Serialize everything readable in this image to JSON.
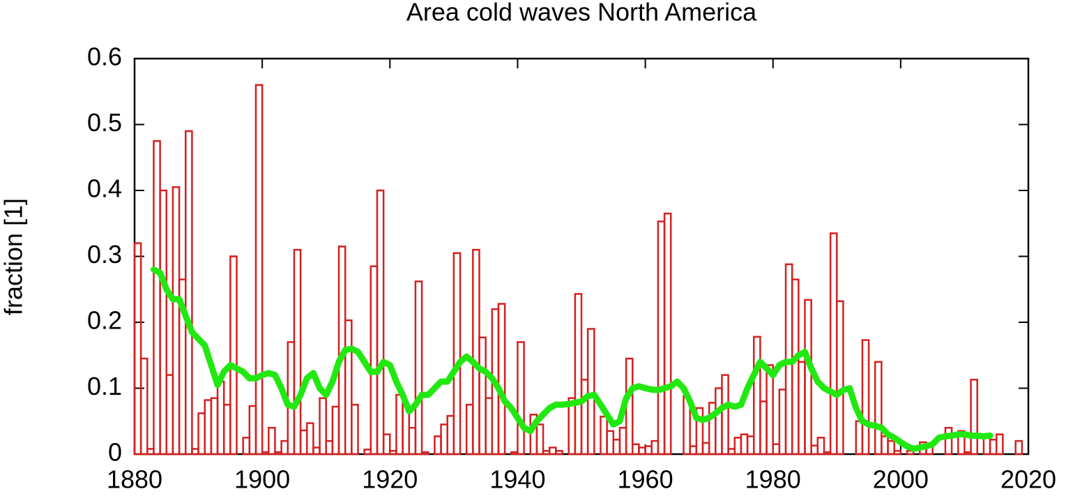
{
  "chart_data": {
    "type": "combo",
    "title": "Area cold waves North America",
    "ylabel": "fraction [1]",
    "xlim": [
      1880,
      2020
    ],
    "xticks": [
      1880,
      1900,
      1920,
      1940,
      1960,
      1980,
      2000,
      2020
    ],
    "ylim": [
      0,
      0.6
    ],
    "yticks": [
      0,
      0.1,
      0.2,
      0.3,
      0.4,
      0.5,
      0.6
    ],
    "series": [
      {
        "type": "bar",
        "color": "#d42020",
        "x": [
          1880,
          1881,
          1882,
          1883,
          1884,
          1885,
          1886,
          1887,
          1888,
          1889,
          1890,
          1891,
          1892,
          1893,
          1894,
          1895,
          1896,
          1897,
          1898,
          1899,
          1900,
          1901,
          1902,
          1903,
          1904,
          1905,
          1906,
          1907,
          1908,
          1909,
          1910,
          1911,
          1912,
          1913,
          1914,
          1915,
          1916,
          1917,
          1918,
          1919,
          1920,
          1921,
          1922,
          1923,
          1924,
          1925,
          1926,
          1927,
          1928,
          1929,
          1930,
          1931,
          1932,
          1933,
          1934,
          1935,
          1936,
          1937,
          1938,
          1939,
          1940,
          1941,
          1942,
          1943,
          1944,
          1945,
          1946,
          1947,
          1948,
          1949,
          1950,
          1951,
          1952,
          1953,
          1954,
          1955,
          1956,
          1957,
          1958,
          1959,
          1960,
          1961,
          1962,
          1963,
          1964,
          1965,
          1966,
          1967,
          1968,
          1969,
          1970,
          1971,
          1972,
          1973,
          1974,
          1975,
          1976,
          1977,
          1978,
          1979,
          1980,
          1981,
          1982,
          1983,
          1984,
          1985,
          1986,
          1987,
          1988,
          1989,
          1990,
          1991,
          1992,
          1993,
          1994,
          1995,
          1996,
          1997,
          1998,
          1999,
          2000,
          2001,
          2002,
          2003,
          2004,
          2005,
          2006,
          2007,
          2008,
          2009,
          2010,
          2011,
          2012,
          2013,
          2014,
          2015,
          2016,
          2017,
          2018
        ],
        "values": [
          0.32,
          0.145,
          0.008,
          0.475,
          0.4,
          0.12,
          0.405,
          0.265,
          0.49,
          0.008,
          0.062,
          0.082,
          0.085,
          0.11,
          0.075,
          0.3,
          0.0,
          0.025,
          0.073,
          0.56,
          0.003,
          0.04,
          0.003,
          0.02,
          0.17,
          0.31,
          0.036,
          0.047,
          0.01,
          0.085,
          0.02,
          0.072,
          0.315,
          0.203,
          0.075,
          0.0,
          0.007,
          0.285,
          0.4,
          0.03,
          0.005,
          0.09,
          0.075,
          0.04,
          0.262,
          0.003,
          0.0,
          0.027,
          0.045,
          0.058,
          0.305,
          0.0,
          0.075,
          0.31,
          0.177,
          0.085,
          0.22,
          0.228,
          0.0,
          0.003,
          0.17,
          0.0,
          0.06,
          0.045,
          0.005,
          0.01,
          0.005,
          0.0,
          0.085,
          0.243,
          0.113,
          0.19,
          0.0,
          0.057,
          0.035,
          0.022,
          0.04,
          0.145,
          0.015,
          0.01,
          0.012,
          0.02,
          0.353,
          0.365,
          0.0,
          0.0,
          0.088,
          0.012,
          0.07,
          0.017,
          0.078,
          0.1,
          0.12,
          0.008,
          0.025,
          0.03,
          0.027,
          0.178,
          0.08,
          0.135,
          0.015,
          0.098,
          0.288,
          0.265,
          0.14,
          0.234,
          0.013,
          0.025,
          0.003,
          0.335,
          0.232,
          0.0,
          0.0,
          0.05,
          0.173,
          0.0,
          0.14,
          0.027,
          0.02,
          0.005,
          0.0,
          0.005,
          0.0,
          0.018,
          0.013,
          0.0,
          0.0,
          0.04,
          0.0,
          0.035,
          0.003,
          0.113,
          0.0,
          0.03,
          0.022,
          0.03,
          null,
          null,
          0.02
        ]
      },
      {
        "type": "line",
        "color": "#22e812",
        "x": [
          1883,
          1884,
          1885,
          1886,
          1887,
          1888,
          1889,
          1890,
          1891,
          1892,
          1893,
          1894,
          1895,
          1896,
          1897,
          1898,
          1899,
          1900,
          1901,
          1902,
          1903,
          1904,
          1905,
          1906,
          1907,
          1908,
          1909,
          1910,
          1911,
          1912,
          1913,
          1914,
          1915,
          1916,
          1917,
          1918,
          1919,
          1920,
          1921,
          1922,
          1923,
          1924,
          1925,
          1926,
          1927,
          1928,
          1929,
          1930,
          1931,
          1932,
          1933,
          1934,
          1935,
          1936,
          1937,
          1938,
          1939,
          1940,
          1941,
          1942,
          1943,
          1944,
          1945,
          1946,
          1947,
          1948,
          1949,
          1950,
          1951,
          1952,
          1953,
          1954,
          1955,
          1956,
          1957,
          1958,
          1959,
          1960,
          1961,
          1962,
          1963,
          1964,
          1965,
          1966,
          1967,
          1968,
          1969,
          1970,
          1971,
          1972,
          1973,
          1974,
          1975,
          1976,
          1977,
          1978,
          1979,
          1980,
          1981,
          1982,
          1983,
          1984,
          1985,
          1986,
          1987,
          1988,
          1989,
          1990,
          1991,
          1992,
          1993,
          1994,
          1995,
          1996,
          1997,
          1998,
          1999,
          2000,
          2001,
          2002,
          2003,
          2004,
          2005,
          2006,
          2007,
          2008,
          2009,
          2010,
          2011,
          2012,
          2013,
          2014
        ],
        "values": [
          0.28,
          0.275,
          0.25,
          0.235,
          0.235,
          0.21,
          0.185,
          0.175,
          0.165,
          0.135,
          0.105,
          0.125,
          0.135,
          0.13,
          0.125,
          0.115,
          0.115,
          0.12,
          0.123,
          0.12,
          0.1,
          0.075,
          0.072,
          0.09,
          0.115,
          0.123,
          0.1,
          0.09,
          0.11,
          0.14,
          0.158,
          0.16,
          0.155,
          0.14,
          0.125,
          0.125,
          0.14,
          0.135,
          0.11,
          0.09,
          0.065,
          0.075,
          0.09,
          0.09,
          0.1,
          0.11,
          0.11,
          0.125,
          0.14,
          0.148,
          0.14,
          0.13,
          0.125,
          0.115,
          0.1,
          0.08,
          0.07,
          0.055,
          0.04,
          0.035,
          0.05,
          0.06,
          0.07,
          0.075,
          0.075,
          0.076,
          0.078,
          0.08,
          0.088,
          0.09,
          0.075,
          0.06,
          0.045,
          0.05,
          0.085,
          0.1,
          0.103,
          0.1,
          0.098,
          0.097,
          0.1,
          0.103,
          0.11,
          0.1,
          0.08,
          0.055,
          0.052,
          0.055,
          0.062,
          0.07,
          0.075,
          0.072,
          0.075,
          0.1,
          0.12,
          0.14,
          0.13,
          0.12,
          0.135,
          0.14,
          0.14,
          0.15,
          0.155,
          0.13,
          0.11,
          0.1,
          0.095,
          0.09,
          0.097,
          0.1,
          0.07,
          0.05,
          0.045,
          0.043,
          0.04,
          0.03,
          0.025,
          0.018,
          0.012,
          0.008,
          0.01,
          0.012,
          0.015,
          0.025,
          0.027,
          0.028,
          0.03,
          0.03,
          0.028,
          0.028,
          0.027,
          0.028
        ]
      }
    ]
  }
}
